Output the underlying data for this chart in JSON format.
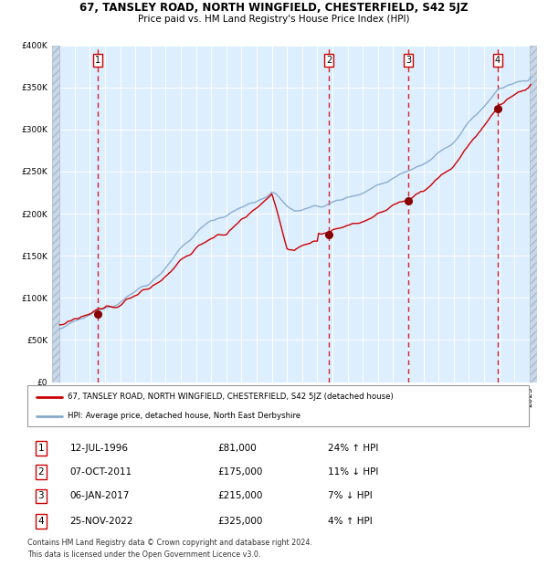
{
  "title1": "67, TANSLEY ROAD, NORTH WINGFIELD, CHESTERFIELD, S42 5JZ",
  "title2": "Price paid vs. HM Land Registry's House Price Index (HPI)",
  "legend1": "67, TANSLEY ROAD, NORTH WINGFIELD, CHESTERFIELD, S42 5JZ (detached house)",
  "legend2": "HPI: Average price, detached house, North East Derbyshire",
  "purchases": [
    {
      "num": 1,
      "date": "12-JUL-1996",
      "price": 81000,
      "pct": "24%",
      "dir": "↑",
      "t": 1996.53
    },
    {
      "num": 2,
      "date": "07-OCT-2011",
      "price": 175000,
      "pct": "11%",
      "dir": "↓",
      "t": 2011.77
    },
    {
      "num": 3,
      "date": "06-JAN-2017",
      "price": 215000,
      "pct": "7%",
      "dir": "↓",
      "t": 2017.02
    },
    {
      "num": 4,
      "date": "25-NOV-2022",
      "price": 325000,
      "pct": "4%",
      "dir": "↑",
      "t": 2022.9
    }
  ],
  "footer1": "Contains HM Land Registry data © Crown copyright and database right 2024.",
  "footer2": "This data is licensed under the Open Government Licence v3.0.",
  "line_color_red": "#cc0000",
  "line_color_blue": "#88aacc",
  "dot_color": "#880000",
  "bg_color": "#ddeeff",
  "hatch_color": "#c8d8e8",
  "grid_color": "#ffffff",
  "ylim": [
    0,
    400000
  ],
  "yticks": [
    0,
    50000,
    100000,
    150000,
    200000,
    250000,
    300000,
    350000,
    400000
  ],
  "xmin": 1993.5,
  "xmax": 2025.5,
  "xstart": 1994,
  "xend": 2025
}
